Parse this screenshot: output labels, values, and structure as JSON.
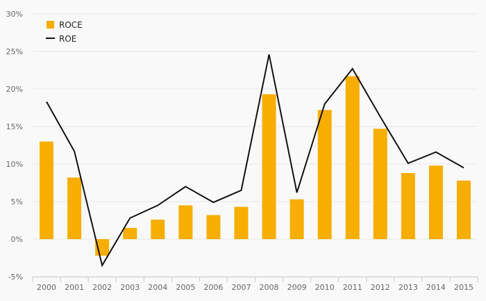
{
  "chart_data": {
    "type": "bar",
    "categories": [
      "2000",
      "2001",
      "2002",
      "2003",
      "2004",
      "2005",
      "2006",
      "2007",
      "2008",
      "2009",
      "2010",
      "2011",
      "2012",
      "2013",
      "2014",
      "2015"
    ],
    "series": [
      {
        "name": "ROCE",
        "type": "bar",
        "color": "#f7ae00",
        "values": [
          13.0,
          8.2,
          -2.2,
          1.5,
          2.6,
          4.5,
          3.2,
          4.3,
          19.3,
          5.3,
          17.2,
          21.7,
          14.7,
          8.8,
          9.8,
          7.8
        ]
      },
      {
        "name": "ROE",
        "type": "line",
        "color": "#111111",
        "values": [
          18.3,
          11.7,
          -3.5,
          2.8,
          4.5,
          7.0,
          4.9,
          6.5,
          24.6,
          6.2,
          18.0,
          22.7,
          16.3,
          10.1,
          11.6,
          9.5
        ]
      }
    ],
    "ylim": [
      -5,
      30
    ],
    "yticks": [
      -5,
      0,
      5,
      10,
      15,
      20,
      25,
      30
    ],
    "ytick_labels": [
      "-5%",
      "0%",
      "5%",
      "10%",
      "15%",
      "20%",
      "25%",
      "30%"
    ],
    "grid": true,
    "legend": "top-left"
  }
}
